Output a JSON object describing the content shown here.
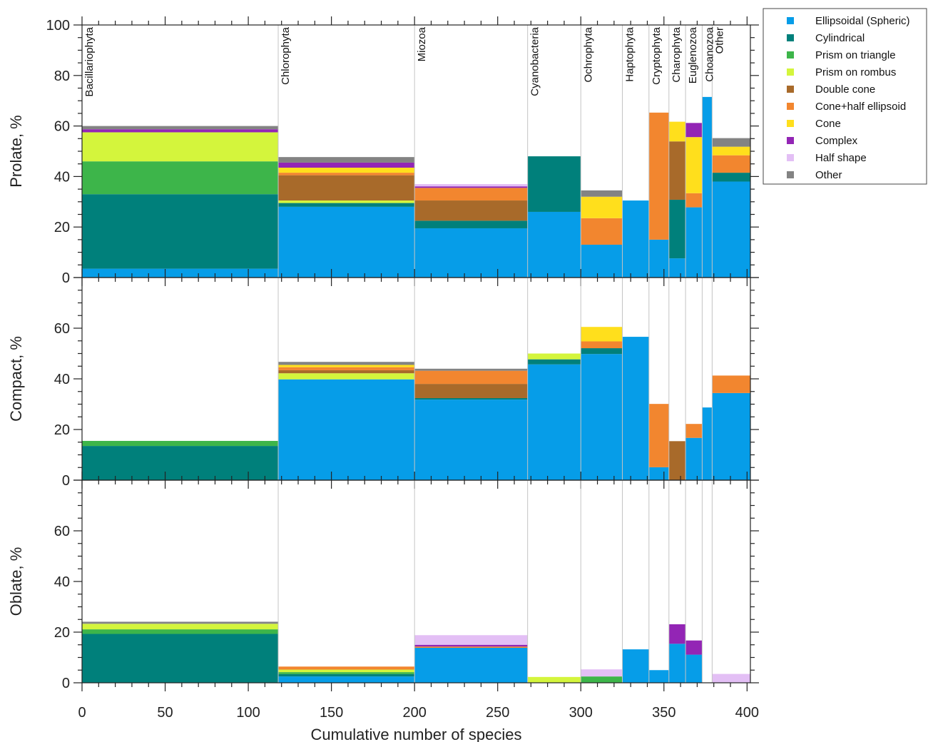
{
  "chart_data": {
    "type": "stacked-bar (variable width)",
    "xlabel": "Cumulative number of species",
    "xlim": [
      0,
      402
    ],
    "xticks": [
      0,
      50,
      100,
      150,
      200,
      250,
      300,
      350,
      400
    ],
    "legend": {
      "placement": "top-right, outside",
      "entries": [
        {
          "name": "Ellipsoidal (Spheric)",
          "color": "#069de8"
        },
        {
          "name": "Cylindrical",
          "color": "#00807b"
        },
        {
          "name": "Prism on triangle",
          "color": "#3db54a"
        },
        {
          "name": "Prism on rombus",
          "color": "#d4f53c"
        },
        {
          "name": "Double cone",
          "color": "#a86a2a"
        },
        {
          "name": "Cone+half ellipsoid",
          "color": "#f2862f"
        },
        {
          "name": "Cone",
          "color": "#ffdf1c"
        },
        {
          "name": "Complex",
          "color": "#9325b5"
        },
        {
          "name": "Half shape",
          "color": "#e3bff5"
        },
        {
          "name": "Other",
          "color": "#838383"
        }
      ]
    },
    "groups": [
      {
        "name": "Bacillariophyta",
        "x0": 0,
        "x1": 118
      },
      {
        "name": "Chlorophyta",
        "x0": 118,
        "x1": 200
      },
      {
        "name": "Miozoa",
        "x0": 200,
        "x1": 268
      },
      {
        "name": "Cyanobacteria",
        "x0": 268,
        "x1": 300
      },
      {
        "name": "Ochrophyta",
        "x0": 300,
        "x1": 325
      },
      {
        "name": "Haptophyta",
        "x0": 325,
        "x1": 341
      },
      {
        "name": "Cryptophyta",
        "x0": 341,
        "x1": 353
      },
      {
        "name": "Charophyta",
        "x0": 353,
        "x1": 363
      },
      {
        "name": "Euglenozoa",
        "x0": 363,
        "x1": 373
      },
      {
        "name": "Choanozoa",
        "x0": 373,
        "x1": 379
      },
      {
        "name": "Other",
        "x0": 379,
        "x1": 402
      }
    ],
    "panels": [
      {
        "ylabel": "Prolate, %",
        "ylim": [
          0,
          100
        ],
        "yticks": [
          0,
          20,
          40,
          60,
          80,
          100
        ],
        "segments": [
          [
            3.5,
            29.5,
            13,
            11.5,
            0,
            0,
            0,
            1.2,
            0,
            1.3
          ],
          [
            28,
            1.5,
            0,
            1,
            10,
            1,
            2,
            2,
            0,
            2.2
          ],
          [
            19.5,
            3,
            0,
            0,
            8,
            5,
            0,
            0.6,
            0.9,
            0
          ],
          [
            26,
            22,
            0,
            0,
            0,
            0,
            0,
            0,
            0,
            0
          ],
          [
            13,
            0,
            0,
            0,
            0,
            10.5,
            8.5,
            0,
            0,
            2.5
          ],
          [
            30.5,
            0,
            0,
            0,
            0,
            0,
            0,
            0,
            0,
            0
          ],
          [
            15,
            0,
            0,
            0,
            0,
            50.3,
            0,
            0,
            0,
            0
          ],
          [
            7.6,
            23.2,
            0,
            0,
            23.1,
            0,
            7.8,
            0,
            0,
            0
          ],
          [
            27.8,
            0,
            0,
            0,
            0,
            5.6,
            22.2,
            5.6,
            0,
            0
          ],
          [
            71.5,
            0,
            0,
            0,
            0,
            0,
            0,
            0,
            0,
            0
          ],
          [
            38,
            3.5,
            0,
            0,
            0,
            6.9,
            3.4,
            0,
            0,
            3.4
          ]
        ]
      },
      {
        "ylabel": "Compact, %",
        "ylim": [
          0,
          80
        ],
        "yticks": [
          0,
          20,
          40,
          60
        ],
        "segments": [
          [
            0,
            13.5,
            2,
            0,
            0,
            0,
            0,
            0,
            0,
            0
          ],
          [
            39.8,
            0,
            0,
            2.4,
            1.2,
            1.2,
            0.9,
            0,
            0,
            1.2
          ],
          [
            31.8,
            0.6,
            0,
            0,
            5.6,
            5.2,
            0,
            0,
            0,
            0.8
          ],
          [
            45.7,
            2,
            0,
            2.3,
            0,
            0,
            0,
            0,
            0,
            0
          ],
          [
            49.8,
            2.3,
            0,
            0,
            0,
            2.7,
            5.7,
            0,
            0,
            0
          ],
          [
            56.6,
            0,
            0,
            0,
            0,
            0,
            0,
            0,
            0,
            0
          ],
          [
            5.1,
            0,
            0,
            0,
            0,
            25,
            0,
            0,
            0,
            0
          ],
          [
            0,
            0,
            0,
            0,
            15.4,
            0,
            0,
            0,
            0,
            0
          ],
          [
            16.7,
            0,
            0,
            0,
            0,
            5.5,
            0,
            0,
            0,
            0
          ],
          [
            28.7,
            0,
            0,
            0,
            0,
            0,
            0,
            0,
            0,
            0
          ],
          [
            34.4,
            0,
            0,
            0,
            0,
            6.9,
            0,
            0,
            0,
            0
          ]
        ]
      },
      {
        "ylabel": "Oblate, %",
        "ylim": [
          0,
          80
        ],
        "yticks": [
          0,
          20,
          40,
          60
        ],
        "segments": [
          [
            0,
            19.3,
            1.8,
            2.2,
            0,
            0,
            0,
            0,
            0,
            0.8
          ],
          [
            2.5,
            0.9,
            0.8,
            1,
            0,
            1.2,
            0,
            0,
            0,
            0
          ],
          [
            13.8,
            0,
            0,
            0,
            0,
            0.5,
            0,
            0.7,
            3.8,
            0
          ],
          [
            0,
            0,
            0,
            2.3,
            0,
            0,
            0,
            0,
            0,
            0
          ],
          [
            0,
            0,
            2.5,
            0,
            0,
            0,
            0,
            0,
            2.8,
            0
          ],
          [
            13.2,
            0,
            0,
            0,
            0,
            0,
            0,
            0,
            0,
            0
          ],
          [
            5,
            0,
            0,
            0,
            0,
            0,
            0,
            0,
            0,
            0
          ],
          [
            15.4,
            0,
            0,
            0,
            0,
            0,
            0,
            7.7,
            0,
            0
          ],
          [
            11.1,
            0,
            0,
            0,
            0,
            0,
            0,
            5.6,
            0,
            0
          ],
          [
            0,
            0,
            0,
            0,
            0,
            0,
            0,
            0,
            0,
            0
          ],
          [
            0,
            0,
            0,
            0,
            0,
            0,
            0,
            0,
            3.5,
            0
          ]
        ]
      }
    ]
  }
}
